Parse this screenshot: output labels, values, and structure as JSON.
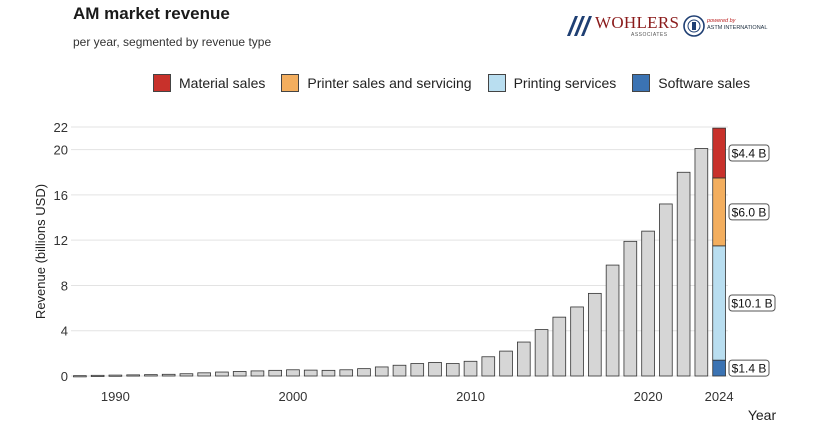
{
  "header": {
    "title": "AM market revenue",
    "subtitle": "per year, segmented by revenue type"
  },
  "logos": {
    "wohlers_name": "WOHLERS",
    "wohlers_sub": "ASSOCIATES",
    "astm_powered": "powered by",
    "astm_name": "ASTM INTERNATIONAL"
  },
  "colors": {
    "material": "#c8312b",
    "printer": "#f3ae5e",
    "printing_services": "#b9def0",
    "software": "#3b73b3",
    "total_bar": "#d6d6d6",
    "grid": "#e3e3e3"
  },
  "chart_data": {
    "type": "bar",
    "ylabel": "Revenue (billions USD)",
    "xlabel": "Year",
    "ylim": [
      0,
      22
    ],
    "yticks": [
      0,
      4,
      8,
      12,
      16,
      20,
      22
    ],
    "xticks": [
      "1990",
      "2000",
      "2010",
      "2020",
      "2024"
    ],
    "grid": true,
    "legend_placement": "top",
    "x": [
      1988,
      1989,
      1990,
      1991,
      1992,
      1993,
      1994,
      1995,
      1996,
      1997,
      1998,
      1999,
      2000,
      2001,
      2002,
      2003,
      2004,
      2005,
      2006,
      2007,
      2008,
      2009,
      2010,
      2011,
      2012,
      2013,
      2014,
      2015,
      2016,
      2017,
      2018,
      2019,
      2020,
      2021,
      2022,
      2023
    ],
    "values": [
      0.03,
      0.06,
      0.08,
      0.1,
      0.12,
      0.15,
      0.2,
      0.28,
      0.35,
      0.4,
      0.45,
      0.5,
      0.55,
      0.52,
      0.5,
      0.55,
      0.65,
      0.8,
      0.95,
      1.1,
      1.2,
      1.1,
      1.3,
      1.7,
      2.2,
      3.0,
      4.1,
      5.2,
      6.1,
      7.3,
      9.8,
      11.9,
      12.8,
      15.2,
      18.0,
      20.1
    ],
    "stacked_year": 2024,
    "series": [
      {
        "name": "Software sales",
        "value": 1.4,
        "label": "$1.4 B"
      },
      {
        "name": "Printing services",
        "value": 10.1,
        "label": "$10.1 B"
      },
      {
        "name": "Printer sales and servicing",
        "value": 6.0,
        "label": "$6.0 B"
      },
      {
        "name": "Material sales",
        "value": 4.4,
        "label": "$4.4 B"
      }
    ]
  }
}
